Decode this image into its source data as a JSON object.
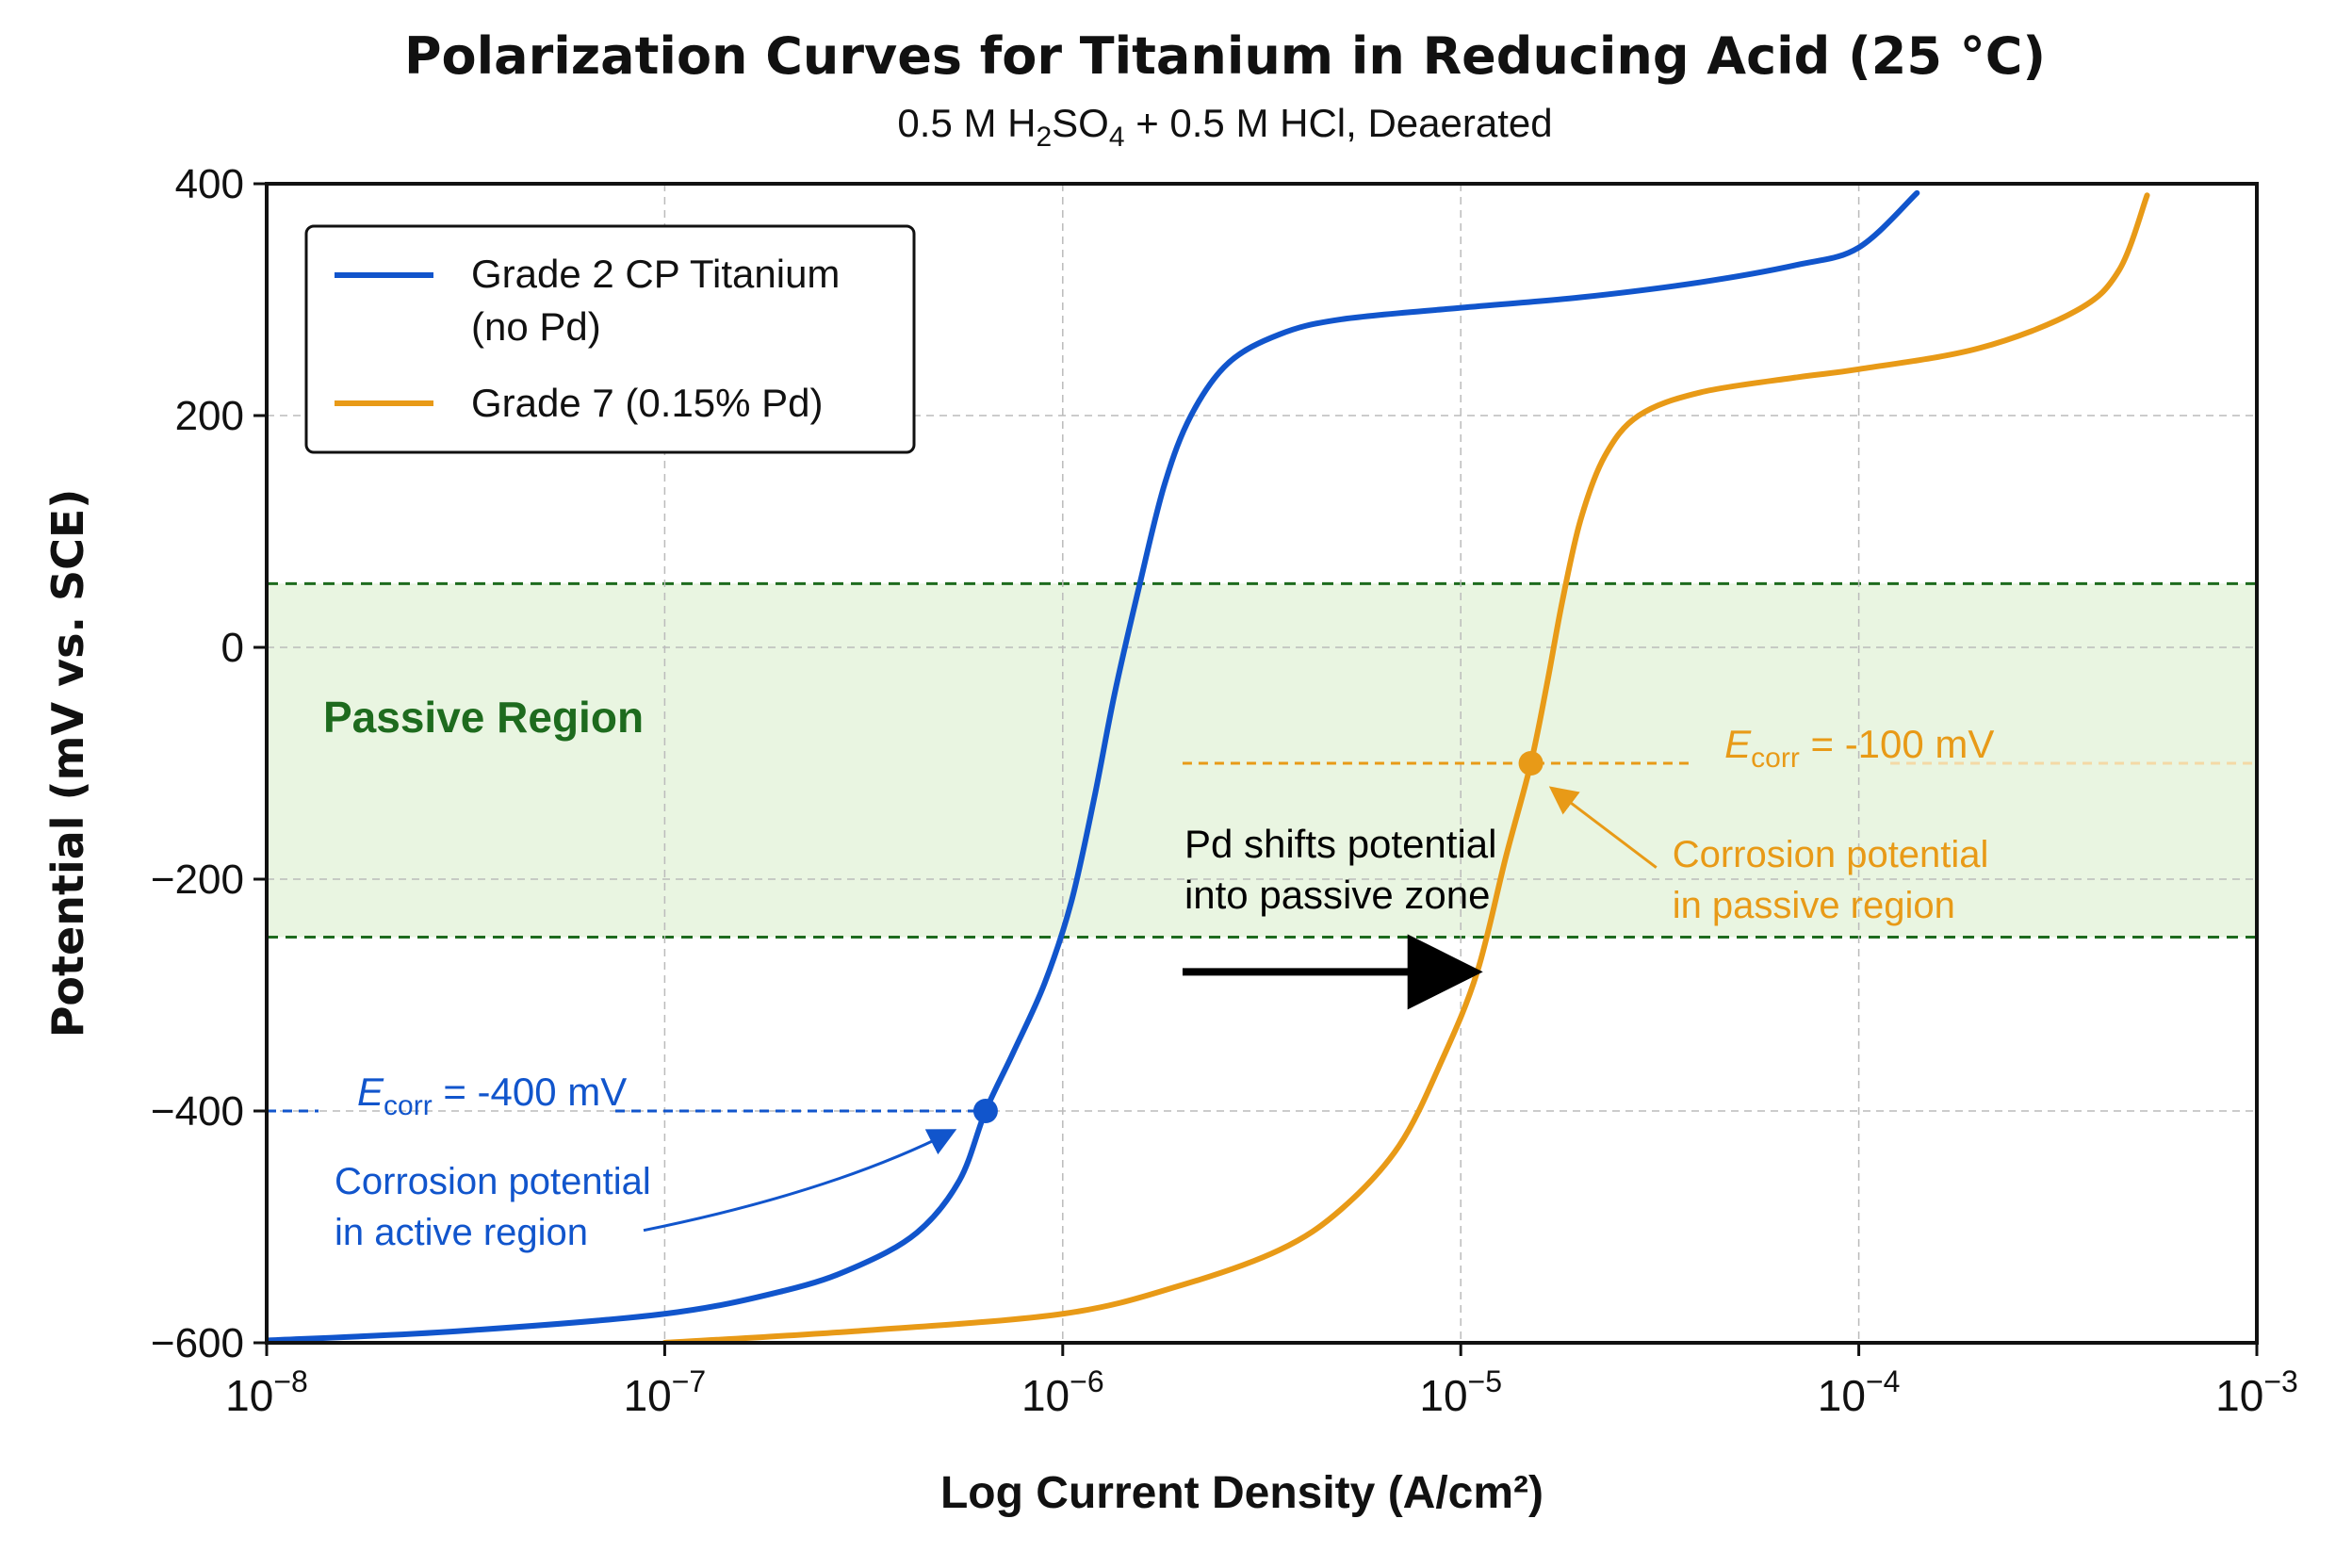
{
  "chart_data": {
    "type": "line",
    "title": "Polarization Curves for Titanium in Reducing Acid (25 °C)",
    "subtitle": {
      "prefix": "0.5 M H",
      "sub1": "2",
      "mid": "SO",
      "sub2": "4",
      "suffix": " + 0.5 M HCl, Deaerated"
    },
    "xlabel": "Log Current Density (A/cm²)",
    "ylabel": "Potential (mV vs. SCE)",
    "x_scale": "log",
    "xlim": [
      1e-08,
      0.001
    ],
    "ylim": [
      -600,
      400
    ],
    "x_ticks": [
      {
        "value": 1e-08,
        "base": "10",
        "exp": "−8"
      },
      {
        "value": 1e-07,
        "base": "10",
        "exp": "−7"
      },
      {
        "value": 1e-06,
        "base": "10",
        "exp": "−6"
      },
      {
        "value": 1e-05,
        "base": "10",
        "exp": "−5"
      },
      {
        "value": 0.0001,
        "base": "10",
        "exp": "−4"
      },
      {
        "value": 0.001,
        "base": "10",
        "exp": "−3"
      }
    ],
    "y_ticks": [
      {
        "value": 400,
        "label": "400"
      },
      {
        "value": 200,
        "label": "200"
      },
      {
        "value": 0,
        "label": "0"
      },
      {
        "value": -200,
        "label": "−200"
      },
      {
        "value": -400,
        "label": "−400"
      },
      {
        "value": -600,
        "label": "−600"
      }
    ],
    "grid": true,
    "legend_position": "top-left",
    "series": [
      {
        "name": "Grade 2 CP Titanium (no Pd)",
        "legend_lines": [
          "Grade 2 CP Titanium",
          "(no Pd)"
        ],
        "color": "#1155cc",
        "points": [
          [
            1e-08,
            -598
          ],
          [
            3e-08,
            -590
          ],
          [
            1e-07,
            -575
          ],
          [
            2e-07,
            -555
          ],
          [
            3e-07,
            -535
          ],
          [
            4.3e-07,
            -505
          ],
          [
            5.5e-07,
            -460
          ],
          [
            6.4e-07,
            -400
          ],
          [
            7.5e-07,
            -350
          ],
          [
            9e-07,
            -290
          ],
          [
            1.05e-06,
            -220
          ],
          [
            1.2e-06,
            -130
          ],
          [
            1.35e-06,
            -40
          ],
          [
            1.55e-06,
            50
          ],
          [
            1.8e-06,
            140
          ],
          [
            2.1e-06,
            200
          ],
          [
            2.6e-06,
            245
          ],
          [
            3.5e-06,
            270
          ],
          [
            5e-06,
            283
          ],
          [
            1e-05,
            293
          ],
          [
            2e-05,
            302
          ],
          [
            4e-05,
            315
          ],
          [
            7e-05,
            330
          ],
          [
            0.0001,
            345
          ],
          [
            0.00014,
            392
          ]
        ]
      },
      {
        "name": "Grade 7 (0.15% Pd)",
        "legend_lines": [
          "Grade 7 (0.15% Pd)"
        ],
        "color": "#e89a17",
        "points": [
          [
            1e-07,
            -600
          ],
          [
            3e-07,
            -590
          ],
          [
            1e-06,
            -575
          ],
          [
            2e-06,
            -550
          ],
          [
            3.5e-06,
            -520
          ],
          [
            5e-06,
            -485
          ],
          [
            7e-06,
            -430
          ],
          [
            9e-06,
            -355
          ],
          [
            1.1e-05,
            -280
          ],
          [
            1.3e-05,
            -180
          ],
          [
            1.5e-05,
            -100
          ],
          [
            1.65e-05,
            -30
          ],
          [
            1.8e-05,
            40
          ],
          [
            2e-05,
            110
          ],
          [
            2.3e-05,
            165
          ],
          [
            2.8e-05,
            200
          ],
          [
            4e-05,
            220
          ],
          [
            7e-05,
            233
          ],
          [
            0.0001,
            240
          ],
          [
            0.0002,
            258
          ],
          [
            0.00035,
            290
          ],
          [
            0.00045,
            325
          ],
          [
            0.00053,
            390
          ]
        ]
      }
    ],
    "passive_region": {
      "label": "Passive Region",
      "y_range": [
        -250,
        55
      ],
      "fill": "#e9f5e1",
      "line_color": "#1e6b1e"
    },
    "corrosion_points": [
      {
        "series": "Grade 2 CP Titanium (no Pd)",
        "x": 6.4e-07,
        "y": -400,
        "label_main": "E",
        "label_sub": "corr",
        "label_rest": " = -400 mV",
        "note_lines": [
          "Corrosion potential",
          "in active region"
        ],
        "color": "#1155cc"
      },
      {
        "series": "Grade 7 (0.15% Pd)",
        "x": 1.5e-05,
        "y": -100,
        "label_main": "E",
        "label_sub": "corr",
        "label_rest": " = -100 mV",
        "note_lines": [
          "Corrosion potential",
          "in passive region"
        ],
        "color": "#e89a17"
      }
    ],
    "shift_annotation": {
      "lines": [
        "Pd shifts potential",
        "into passive zone"
      ],
      "x_from": 2e-06,
      "x_to": 1.1e-05,
      "y": -280,
      "color": "#000000"
    }
  }
}
